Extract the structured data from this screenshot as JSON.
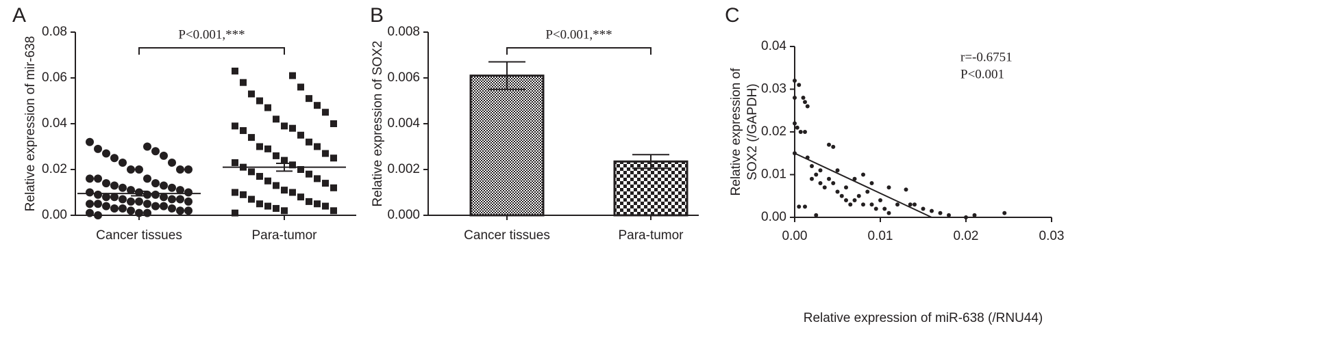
{
  "chart_data": [
    {
      "type": "dot",
      "panel_label": "A",
      "ylabel": "Relative expression of mir-638",
      "categories": [
        "Cancer tissues",
        "Para-tumor"
      ],
      "markers": [
        "circle",
        "square"
      ],
      "color": "#231f20",
      "points": [
        [
          0.032,
          0.03,
          0.029,
          0.028,
          0.027,
          0.026,
          0.025,
          0.023,
          0.023,
          0.02,
          0.02,
          0.02,
          0.02,
          0.016,
          0.016,
          0.016,
          0.014,
          0.014,
          0.013,
          0.013,
          0.012,
          0.012,
          0.011,
          0.011,
          0.01,
          0.01,
          0.01,
          0.009,
          0.009,
          0.009,
          0.008,
          0.008,
          0.008,
          0.007,
          0.007,
          0.007,
          0.006,
          0.006,
          0.006,
          0.005,
          0.005,
          0.005,
          0.004,
          0.004,
          0.004,
          0.003,
          0.003,
          0.003,
          0.002,
          0.002,
          0.002,
          0.001,
          0.001,
          0.001,
          0.0
        ],
        [
          0.063,
          0.061,
          0.058,
          0.056,
          0.053,
          0.051,
          0.05,
          0.048,
          0.047,
          0.045,
          0.042,
          0.04,
          0.039,
          0.039,
          0.038,
          0.037,
          0.035,
          0.034,
          0.032,
          0.03,
          0.03,
          0.029,
          0.027,
          0.026,
          0.025,
          0.024,
          0.023,
          0.022,
          0.021,
          0.02,
          0.019,
          0.018,
          0.017,
          0.016,
          0.015,
          0.014,
          0.013,
          0.012,
          0.011,
          0.01,
          0.01,
          0.009,
          0.008,
          0.007,
          0.006,
          0.005,
          0.005,
          0.004,
          0.004,
          0.003,
          0.002,
          0.002,
          0.001
        ]
      ],
      "mean": [
        0.0095,
        0.021
      ],
      "sem": [
        0.001,
        0.0017
      ],
      "annotation": "P<0.001,***",
      "ylim": [
        0,
        0.08
      ],
      "yticks": [
        {
          "value": 0,
          "label": "0.00"
        },
        0.02,
        0.04,
        0.06,
        0.08
      ]
    },
    {
      "type": "bar",
      "panel_label": "B",
      "ylabel": "Relative expression of SOX2",
      "categories": [
        "Cancer tissues",
        "Para-tumor"
      ],
      "values": [
        0.0061,
        0.00235
      ],
      "errors": [
        0.0006,
        0.0003
      ],
      "color": "#231f20",
      "annotation": "P<0.001,***",
      "ylim": [
        0,
        0.008
      ],
      "yticks": [
        {
          "value": 0,
          "label": "0.000"
        },
        0.002,
        0.004,
        0.006,
        0.008
      ]
    },
    {
      "type": "scatter",
      "panel_label": "C",
      "ylabel": [
        "Relative expression of",
        "SOX2 (/GAPDH)"
      ],
      "xlabel": "Relative expression of miR-638 (/RNU44)",
      "color": "#231f20",
      "x": [
        0,
        0,
        0.0005,
        0,
        0.0003,
        0.0007,
        0,
        0.0012,
        0.0015,
        0.001,
        0.0012,
        0.0005,
        0.0012,
        0.0015,
        0.002,
        0.002,
        0.0025,
        0.003,
        0.003,
        0.0035,
        0.004,
        0.0045,
        0.004,
        0.0045,
        0.005,
        0.005,
        0.0055,
        0.006,
        0.006,
        0.0065,
        0.007,
        0.007,
        0.0075,
        0.008,
        0.008,
        0.0085,
        0.009,
        0.009,
        0.0095,
        0.01,
        0.0105,
        0.011,
        0.011,
        0.012,
        0.013,
        0.0135,
        0.014,
        0.015,
        0.016,
        0.017,
        0.018,
        0.02,
        0.021,
        0.0245,
        0.0025
      ],
      "y": [
        0.032,
        0.028,
        0.031,
        0.022,
        0.021,
        0.02,
        0.015,
        0.027,
        0.026,
        0.028,
        0.02,
        0.0025,
        0.0025,
        0.014,
        0.012,
        0.009,
        0.01,
        0.011,
        0.008,
        0.007,
        0.017,
        0.0165,
        0.009,
        0.008,
        0.011,
        0.006,
        0.005,
        0.007,
        0.004,
        0.003,
        0.009,
        0.004,
        0.005,
        0.003,
        0.01,
        0.006,
        0.008,
        0.003,
        0.002,
        0.004,
        0.002,
        0.001,
        0.007,
        0.003,
        0.0065,
        0.003,
        0.003,
        0.002,
        0.0015,
        0.001,
        0.0005,
        0,
        0.0005,
        0.001,
        0.0005
      ],
      "fit": {
        "x": [
          0,
          0.016
        ],
        "y": [
          0.015,
          0
        ]
      },
      "annotations": [
        "r=-0.6751",
        "P<0.001"
      ],
      "xlim": [
        0,
        0.03
      ],
      "xticks": [
        {
          "value": 0,
          "label": "0.00"
        },
        0.01,
        0.02,
        0.03
      ],
      "ylim": [
        0,
        0.04
      ],
      "yticks": [
        {
          "value": 0,
          "label": "0.00"
        },
        0.01,
        0.02,
        0.03,
        0.04
      ]
    }
  ]
}
